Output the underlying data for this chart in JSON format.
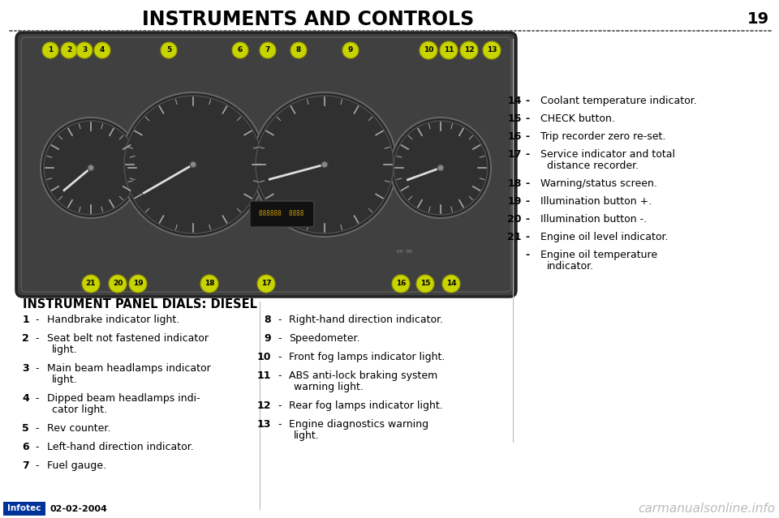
{
  "title": "INSTRUMENTS AND CONTROLS",
  "page_number": "19",
  "background_color": "#ffffff",
  "title_color": "#000000",
  "title_fontsize": 17,
  "subtitle": "INSTRUMENT PANEL DIALS: DIESEL",
  "subtitle_fontsize": 10.5,
  "left_column_items": [
    {
      "num": "1",
      "dash": "-",
      "text": "Handbrake indicator light.",
      "wrap": false
    },
    {
      "num": "2",
      "dash": "-",
      "text": "Seat belt not fastened indicator",
      "text2": "light.",
      "wrap": true
    },
    {
      "num": "3",
      "dash": "-",
      "text": "Main beam headlamps indicator",
      "text2": "light.",
      "wrap": true
    },
    {
      "num": "4",
      "dash": "-",
      "text": "Dipped beam headlamps indi-",
      "text2": "cator light.",
      "wrap": true
    },
    {
      "num": "5",
      "dash": "-",
      "text": "Rev counter.",
      "wrap": false
    },
    {
      "num": "6",
      "dash": "-",
      "text": "Left-hand direction indicator.",
      "wrap": false
    },
    {
      "num": "7",
      "dash": "-",
      "text": "Fuel gauge.",
      "wrap": false
    }
  ],
  "middle_column_items": [
    {
      "num": "8",
      "dash": "-",
      "text": "Right-hand direction indicator.",
      "wrap": false
    },
    {
      "num": "9",
      "dash": "-",
      "text": "Speedometer.",
      "wrap": false
    },
    {
      "num": "10",
      "dash": "-",
      "text": "Front fog lamps indicator light.",
      "wrap": false
    },
    {
      "num": "11",
      "dash": "-",
      "text": "ABS anti-lock braking system",
      "text2": "warning light.",
      "wrap": true
    },
    {
      "num": "12",
      "dash": "-",
      "text": "Rear fog lamps indicator light.",
      "wrap": false
    },
    {
      "num": "13",
      "dash": "-",
      "text": "Engine diagnostics warning",
      "text2": "light.",
      "wrap": true
    }
  ],
  "right_column_items": [
    {
      "num": "14",
      "dash": "-",
      "text": "Coolant temperature indicator.",
      "wrap": false
    },
    {
      "num": "15",
      "dash": "-",
      "text": "CHECK button.",
      "wrap": false
    },
    {
      "num": "16",
      "dash": "-",
      "text": "Trip recorder zero re-set.",
      "wrap": false
    },
    {
      "num": "17",
      "dash": "-",
      "text": "Service indicator and total",
      "text2": "distance recorder.",
      "wrap": true
    },
    {
      "num": "18",
      "dash": "-",
      "text": "Warning/status screen.",
      "wrap": false
    },
    {
      "num": "19",
      "dash": "-",
      "text": "Illumination button +.",
      "wrap": false
    },
    {
      "num": "20",
      "dash": "-",
      "text": "Illumination button -.",
      "wrap": false
    },
    {
      "num": "21",
      "dash": "-",
      "text": "Engine oil level indicator.",
      "wrap": false
    },
    {
      "num": "",
      "dash": "-",
      "text": "Engine oil temperature",
      "text2": "indicator.",
      "wrap": true
    }
  ],
  "badge_color": "#c8d400",
  "badge_text_color": "#000000",
  "badge_fontsize": 6.5,
  "infotec_bg": "#003399",
  "infotec_text": "Infotec",
  "date_text": "02-02-2004",
  "watermark_text": "carmanualsonline.info",
  "watermark_color": "#bbbbbb",
  "cluster_bg": "#404040",
  "cluster_edge": "#222222",
  "dial_bg": "#303030",
  "dial_edge": "#606060",
  "tick_color": "#aaaaaa",
  "text_fontsize": 9
}
